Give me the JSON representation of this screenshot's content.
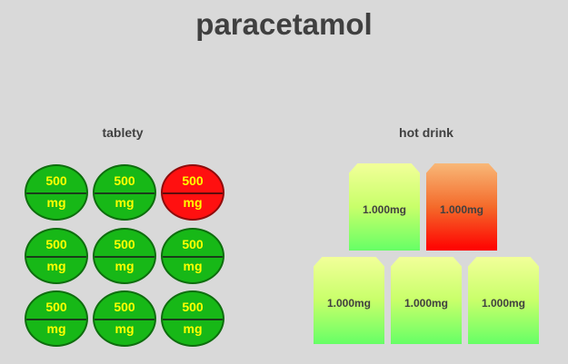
{
  "title": "paracetamol",
  "tablets": {
    "label": "tablety",
    "items": [
      {
        "dose": "500",
        "unit": "mg",
        "status": "normal"
      },
      {
        "dose": "500",
        "unit": "mg",
        "status": "normal"
      },
      {
        "dose": "500",
        "unit": "mg",
        "status": "highlighted"
      },
      {
        "dose": "500",
        "unit": "mg",
        "status": "normal"
      },
      {
        "dose": "500",
        "unit": "mg",
        "status": "normal"
      },
      {
        "dose": "500",
        "unit": "mg",
        "status": "normal"
      },
      {
        "dose": "500",
        "unit": "mg",
        "status": "normal"
      },
      {
        "dose": "500",
        "unit": "mg",
        "status": "normal"
      },
      {
        "dose": "500",
        "unit": "mg",
        "status": "normal"
      }
    ]
  },
  "hot_drinks": {
    "label": "hot drink",
    "items": [
      {
        "dose": "1.000mg",
        "status": "normal"
      },
      {
        "dose": "1.000mg",
        "status": "highlighted"
      },
      {
        "dose": "1.000mg",
        "status": "normal"
      },
      {
        "dose": "1.000mg",
        "status": "normal"
      },
      {
        "dose": "1.000mg",
        "status": "normal"
      }
    ]
  },
  "colors": {
    "background": "#d9d9d9",
    "tablet_normal": "#17b817",
    "tablet_highlight": "#ff1010",
    "dose_text": "#ffff00",
    "sachet_normal_top": "#f2ff9a",
    "sachet_normal_bottom": "#66ff66",
    "sachet_highlight_top": "#f8b878",
    "sachet_highlight_bottom": "#ff0000"
  }
}
